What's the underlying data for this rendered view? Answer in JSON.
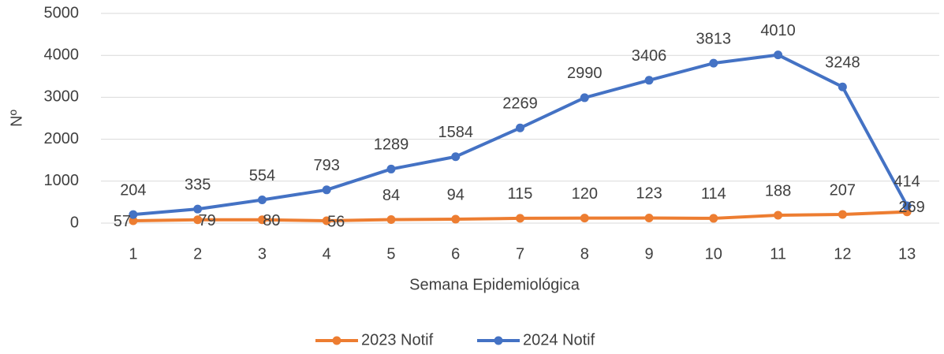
{
  "chart_data": {
    "type": "line",
    "x_label": "Semana Epidemiológica",
    "y_label": "Nº",
    "categories": [
      "1",
      "2",
      "3",
      "4",
      "5",
      "6",
      "7",
      "8",
      "9",
      "10",
      "11",
      "12",
      "13"
    ],
    "series": [
      {
        "name": "2023 Notif",
        "color": "#ed7d31",
        "values": [
          57,
          79,
          80,
          56,
          84,
          94,
          115,
          120,
          123,
          114,
          188,
          207,
          269
        ]
      },
      {
        "name": "2024 Notif",
        "color": "#4472c4",
        "values": [
          204,
          335,
          554,
          793,
          1289,
          1584,
          2269,
          2990,
          3406,
          3813,
          4010,
          3248,
          414
        ]
      }
    ],
    "ylim": [
      0,
      5000
    ],
    "yticks": [
      0,
      1000,
      2000,
      3000,
      4000,
      5000
    ],
    "grid": true,
    "legend": "bottom"
  }
}
